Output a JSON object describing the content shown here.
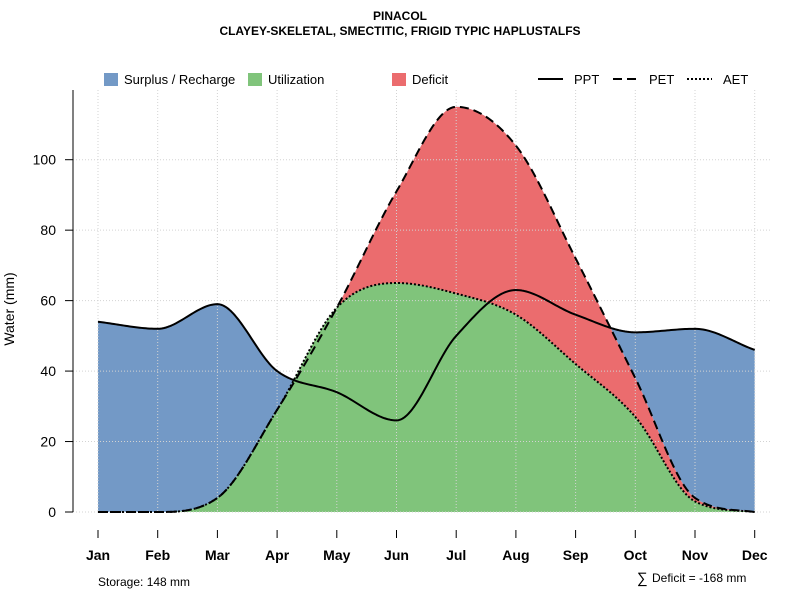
{
  "chart_data": {
    "type": "area",
    "title": "PINACOL",
    "subtitle": "CLAYEY-SKELETAL, SMECTITIC, FRIGID TYPIC HAPLUSTALFS",
    "xlabel": "",
    "ylabel": "Water (mm)",
    "ylim": [
      0,
      120
    ],
    "yticks": [
      0,
      20,
      40,
      60,
      80,
      100
    ],
    "grid": true,
    "legend_position": "top",
    "categories": [
      "Jan",
      "Feb",
      "Mar",
      "Apr",
      "May",
      "Jun",
      "Jul",
      "Aug",
      "Sep",
      "Oct",
      "Nov",
      "Dec"
    ],
    "series": [
      {
        "name": "PPT",
        "linestyle": "solid",
        "values": [
          54,
          52,
          59,
          40,
          34,
          26,
          50,
          63,
          56,
          51,
          52,
          46
        ]
      },
      {
        "name": "PET",
        "linestyle": "dashed",
        "values": [
          0,
          0,
          4,
          29,
          58,
          91,
          115,
          104,
          72,
          38,
          4,
          0
        ]
      },
      {
        "name": "AET",
        "linestyle": "dotted",
        "values": [
          0,
          0,
          4,
          29,
          58,
          65,
          62,
          56,
          42,
          27,
          3,
          0
        ]
      }
    ],
    "areas": [
      {
        "name": "Surplus / Recharge",
        "color": "#7399C6"
      },
      {
        "name": "Utilization",
        "color": "#80C47B"
      },
      {
        "name": "Deficit",
        "color": "#EB6C6E"
      }
    ],
    "annotations": {
      "storage": "Storage: 148 mm",
      "deficit_symbol": "∑",
      "deficit": "Deficit = -168 mm"
    }
  }
}
